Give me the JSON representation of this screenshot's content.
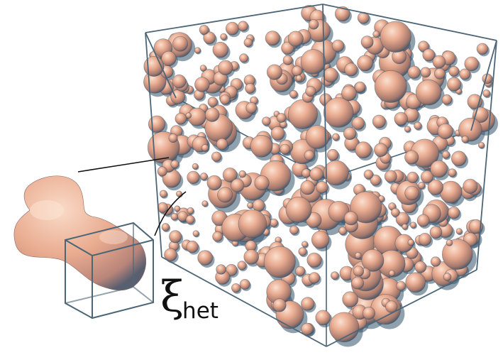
{
  "figure": {
    "symbol": "ξ",
    "subscript": "het"
  },
  "colors": {
    "blob_fill": "#e8aa8f",
    "blob_shadow": "#2f4e68",
    "box_edge": "#4c6677",
    "leader_line": "#111111",
    "label": "#111111"
  }
}
